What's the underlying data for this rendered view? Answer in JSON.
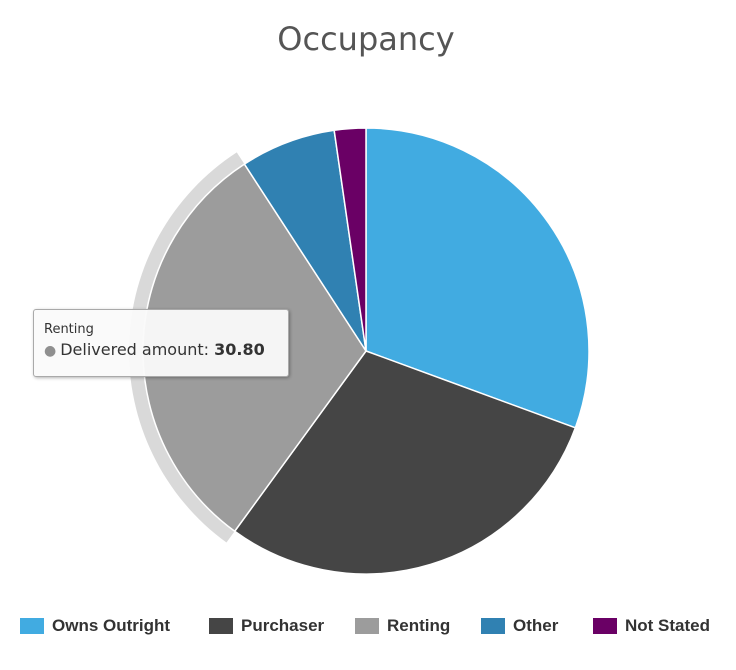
{
  "chart_data": {
    "type": "pie",
    "title": "Occupancy",
    "series_name": "Delivered amount",
    "slices": [
      {
        "name": "Owns Outright",
        "value": 30.6,
        "color": "#41abe1"
      },
      {
        "name": "Purchaser",
        "value": 29.42,
        "color": "#454545"
      },
      {
        "name": "Renting",
        "value": 30.8,
        "color": "#9c9c9c"
      },
      {
        "name": "Other",
        "value": 6.9,
        "color": "#3081b2"
      },
      {
        "name": "Not Stated",
        "value": 2.28,
        "color": "#6a0065"
      }
    ],
    "hovered": "Renting",
    "legend_position": "bottom"
  },
  "tooltip": {
    "name": "Renting",
    "series_label": "Delivered amount:",
    "value": "30.80"
  }
}
